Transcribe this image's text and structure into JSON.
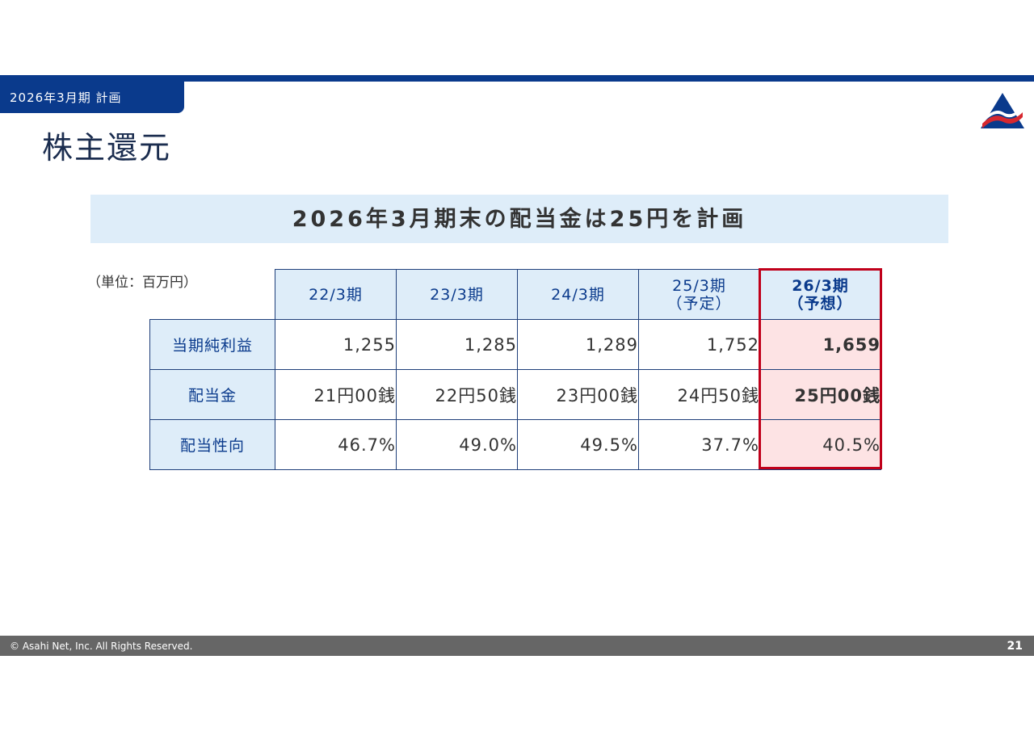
{
  "header": {
    "period_tab": "2026年3月期 計画",
    "page_title": "株主還元",
    "logo_icon": "asahi-net-logo-icon",
    "brand_colors": {
      "navy": "#0a3a8c",
      "red": "#d7282f"
    }
  },
  "banner": {
    "text": "2026年3月期末の配当金は25円を計画"
  },
  "table": {
    "unit_note": "（単位：百万円）",
    "columns": [
      {
        "line1": "22/3期",
        "line2": ""
      },
      {
        "line1": "23/3期",
        "line2": ""
      },
      {
        "line1": "24/3期",
        "line2": ""
      },
      {
        "line1": "25/3期",
        "line2": "（予定）"
      },
      {
        "line1": "26/3期",
        "line2": "（予想）"
      }
    ],
    "rows": [
      {
        "label": "当期純利益",
        "values": [
          "1,255",
          "1,285",
          "1,289",
          "1,752",
          "1,659"
        ]
      },
      {
        "label": "配当金",
        "values": [
          "21円00銭",
          "22円50銭",
          "23円00銭",
          "24円50銭",
          "25円00銭"
        ]
      },
      {
        "label": "配当性向",
        "values": [
          "46.7%",
          "49.0%",
          "49.5%",
          "37.7%",
          "40.5%"
        ]
      }
    ],
    "highlight_color": "#c0001a"
  },
  "footer": {
    "copyright": "© Asahi Net, Inc. All Rights Reserved.",
    "page_number": "21"
  }
}
